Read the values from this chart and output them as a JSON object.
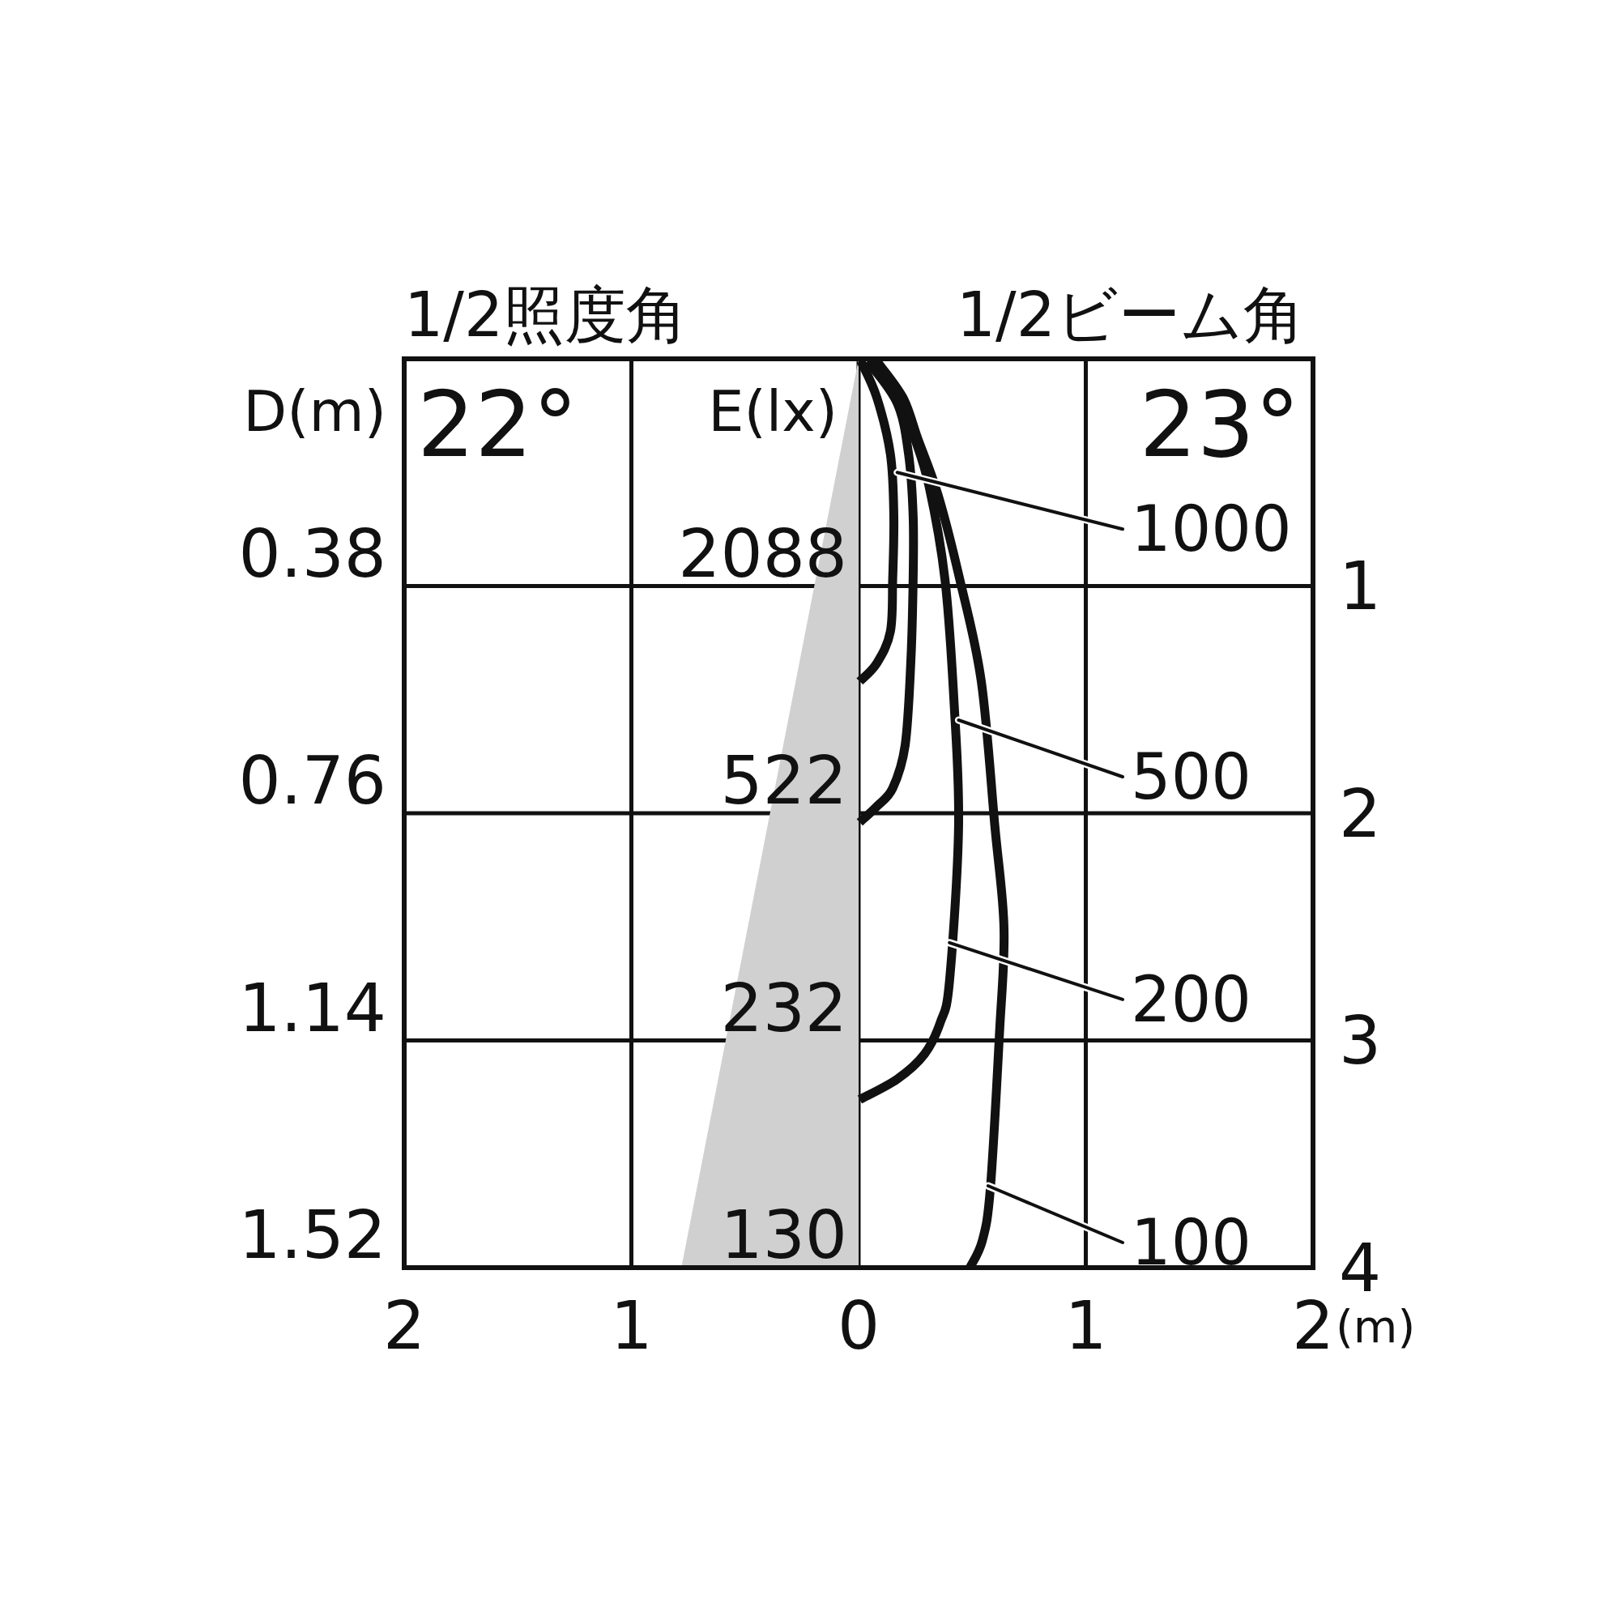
{
  "chart_data": {
    "type": "line",
    "title": "1/2照度角",
    "subtitle": "1/2ビーム角",
    "xlabel": "(m)",
    "ylabel": "D(m)",
    "xlim": [
      -2,
      2
    ],
    "xticks": [
      {
        "value": -2,
        "label": "2"
      },
      {
        "value": -1,
        "label": "1"
      },
      0,
      1,
      2
    ],
    "ylim": [
      4,
      0
    ],
    "yticks": [
      1,
      2,
      3,
      4
    ],
    "grid": true,
    "series": [
      {
        "type": "area",
        "color": "#d0d0d0",
        "x": [
          0,
          -0.78
        ],
        "values": [
          0,
          4
        ]
      },
      {
        "color": "#111111",
        "x": [
          0.01,
          0.08,
          0.14,
          0.155,
          0.15,
          0.14,
          0.08,
          0.005
        ],
        "values": [
          0.01,
          0.17,
          0.42,
          0.69,
          0.97,
          1.2,
          1.34,
          1.42
        ]
      },
      {
        "color": "#111111",
        "x": [
          0.04,
          0.17,
          0.22,
          0.24,
          0.24,
          0.23,
          0.205,
          0.15,
          0.08,
          0.005
        ],
        "values": [
          0.01,
          0.195,
          0.42,
          0.69,
          0.97,
          1.33,
          1.7,
          1.89,
          1.97,
          2.04
        ]
      },
      {
        "color": "#111111",
        "x": [
          0.06,
          0.17,
          0.24,
          0.31,
          0.38,
          0.42,
          0.44,
          0.4,
          0.36,
          0.29,
          0.17,
          0.005
        ],
        "values": [
          0.01,
          0.15,
          0.33,
          0.56,
          0.97,
          1.51,
          2.06,
          2.74,
          2.92,
          3.06,
          3.17,
          3.26
        ]
      },
      {
        "color": "#111111",
        "x": [
          0.08,
          0.195,
          0.26,
          0.35,
          0.445,
          0.54,
          0.6,
          0.64,
          0.62,
          0.58,
          0.545,
          0.49
        ],
        "values": [
          0.01,
          0.17,
          0.35,
          0.6,
          0.97,
          1.42,
          2.06,
          2.51,
          2.97,
          3.65,
          3.88,
          4
        ]
      }
    ],
    "annotations": [
      "22°",
      "23°",
      "E(lx)",
      "0.38",
      "0.76",
      "1.14",
      "1.52",
      {
        "text": "2088",
        "x": 0,
        "y": 1
      },
      {
        "text": "522",
        "x": 0,
        "y": 2
      },
      {
        "text": "232",
        "x": 0,
        "y": 3
      },
      {
        "text": "130",
        "x": 0,
        "y": 4
      },
      {
        "text": "1000",
        "x": 0.17,
        "y": 0.5
      },
      {
        "text": "500",
        "x": 0.44,
        "y": 1.59
      },
      {
        "text": "200",
        "x": 0.4,
        "y": 2.57
      },
      {
        "text": "100",
        "x": 0.57,
        "y": 3.64
      }
    ]
  }
}
